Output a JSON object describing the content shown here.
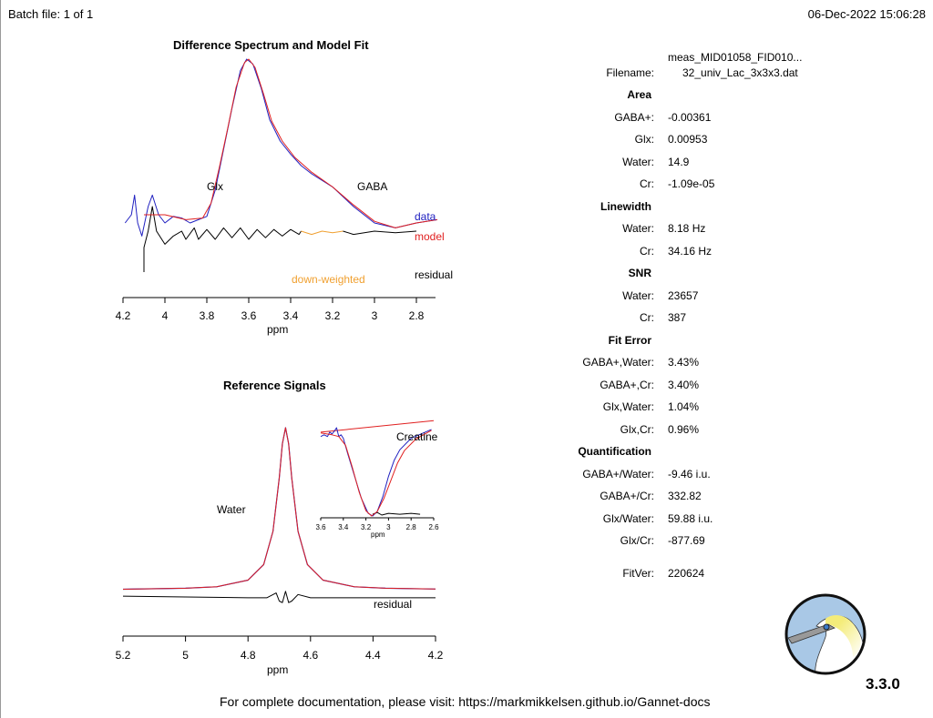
{
  "header": {
    "batch": "Batch file: 1 of 1",
    "datetime": "06-Dec-2022 15:06:28"
  },
  "footer": "For complete documentation, please visit: https://markmikkelsen.github.io/Gannet-docs",
  "version": "3.3.0",
  "results": {
    "filename_label": "Filename:",
    "filename_line1": "meas_MID01058_FID010...",
    "filename_line2": "32_univ_Lac_3x3x3.dat",
    "sections": [
      {
        "title": "Area",
        "rows": [
          [
            "GABA+:",
            "-0.00361"
          ],
          [
            "Glx:",
            "0.00953"
          ],
          [
            "Water:",
            "14.9"
          ],
          [
            "Cr:",
            "-1.09e-05"
          ]
        ]
      },
      {
        "title": "Linewidth",
        "rows": [
          [
            "Water:",
            "8.18 Hz"
          ],
          [
            "Cr:",
            "34.16 Hz"
          ]
        ]
      },
      {
        "title": "SNR",
        "rows": [
          [
            "Water:",
            "23657"
          ],
          [
            "Cr:",
            "387"
          ]
        ]
      },
      {
        "title": "Fit Error",
        "rows": [
          [
            "GABA+,Water:",
            "3.43%"
          ],
          [
            "GABA+,Cr:",
            "3.40%"
          ],
          [
            "Glx,Water:",
            "1.04%"
          ],
          [
            "Glx,Cr:",
            "0.96%"
          ]
        ]
      },
      {
        "title": "Quantification",
        "rows": [
          [
            "GABA+/Water:",
            "-9.46 i.u."
          ],
          [
            "GABA+/Cr:",
            "332.82"
          ],
          [
            "Glx/Water:",
            "59.88 i.u."
          ],
          [
            "Glx/Cr:",
            "-877.69"
          ]
        ]
      }
    ],
    "fitver_label": "FitVer:",
    "fitver": "220624"
  },
  "colors": {
    "data": "#2020c0",
    "model": "#e02020",
    "residual": "#000000",
    "downweighted": "#f0a030"
  },
  "chart_data": [
    {
      "type": "line",
      "title": "Difference Spectrum and Model Fit",
      "xlabel": "ppm",
      "xlim": [
        4.2,
        2.7
      ],
      "reversed_x": true,
      "xticks": [
        "4.2",
        "4",
        "3.8",
        "3.6",
        "3.4",
        "3.2",
        "3",
        "2.8"
      ],
      "annotations": {
        "glx": "Glx",
        "gaba": "GABA",
        "data": "data",
        "model": "model",
        "residual": "residual",
        "downweighted": "down-weighted"
      },
      "series": {
        "data": [
          [
            4.19,
            0.0
          ],
          [
            4.16,
            0.05
          ],
          [
            4.145,
            0.17
          ],
          [
            4.13,
            0.0
          ],
          [
            4.11,
            -0.08
          ],
          [
            4.08,
            0.1
          ],
          [
            4.06,
            0.17
          ],
          [
            4.03,
            0.05
          ],
          [
            4.0,
            0.0
          ],
          [
            3.96,
            0.04
          ],
          [
            3.92,
            0.03
          ],
          [
            3.88,
            0.0
          ],
          [
            3.84,
            0.02
          ],
          [
            3.8,
            0.04
          ],
          [
            3.76,
            0.2
          ],
          [
            3.72,
            0.45
          ],
          [
            3.68,
            0.7
          ],
          [
            3.64,
            0.93
          ],
          [
            3.61,
            1.0
          ],
          [
            3.58,
            0.97
          ],
          [
            3.54,
            0.82
          ],
          [
            3.5,
            0.63
          ],
          [
            3.45,
            0.5
          ],
          [
            3.4,
            0.42
          ],
          [
            3.35,
            0.35
          ],
          [
            3.3,
            0.3
          ],
          [
            3.2,
            0.22
          ],
          [
            3.1,
            0.1
          ],
          [
            3.0,
            0.0
          ],
          [
            2.9,
            -0.03
          ],
          [
            2.8,
            0.0
          ],
          [
            2.7,
            0.02
          ]
        ],
        "model": [
          [
            4.1,
            0.05
          ],
          [
            4.0,
            0.05
          ],
          [
            3.9,
            0.02
          ],
          [
            3.82,
            0.03
          ],
          [
            3.78,
            0.12
          ],
          [
            3.74,
            0.34
          ],
          [
            3.7,
            0.58
          ],
          [
            3.66,
            0.83
          ],
          [
            3.62,
            0.98
          ],
          [
            3.6,
            1.0
          ],
          [
            3.57,
            0.95
          ],
          [
            3.53,
            0.79
          ],
          [
            3.49,
            0.62
          ],
          [
            3.44,
            0.5
          ],
          [
            3.38,
            0.4
          ],
          [
            3.3,
            0.31
          ],
          [
            3.2,
            0.22
          ],
          [
            3.1,
            0.11
          ],
          [
            3.0,
            0.01
          ],
          [
            2.9,
            -0.03
          ],
          [
            2.8,
            0.0
          ],
          [
            2.7,
            0.02
          ]
        ],
        "residual": [
          [
            4.1,
            -0.3
          ],
          [
            4.1,
            -0.15
          ],
          [
            4.08,
            -0.05
          ],
          [
            4.06,
            0.1
          ],
          [
            4.04,
            -0.05
          ],
          [
            4.0,
            -0.13
          ],
          [
            3.96,
            -0.08
          ],
          [
            3.92,
            -0.05
          ],
          [
            3.9,
            -0.1
          ],
          [
            3.86,
            -0.03
          ],
          [
            3.84,
            -0.1
          ],
          [
            3.8,
            -0.04
          ],
          [
            3.76,
            -0.1
          ],
          [
            3.72,
            -0.03
          ],
          [
            3.68,
            -0.09
          ],
          [
            3.64,
            -0.03
          ],
          [
            3.6,
            -0.1
          ],
          [
            3.56,
            -0.04
          ],
          [
            3.52,
            -0.09
          ],
          [
            3.48,
            -0.04
          ],
          [
            3.44,
            -0.08
          ],
          [
            3.4,
            -0.04
          ],
          [
            3.36,
            -0.07
          ],
          [
            3.35,
            -0.05
          ]
        ],
        "residual_downweighted": [
          [
            3.35,
            -0.05
          ],
          [
            3.3,
            -0.07
          ],
          [
            3.25,
            -0.05
          ],
          [
            3.2,
            -0.06
          ],
          [
            3.15,
            -0.05
          ]
        ],
        "residual_tail": [
          [
            3.15,
            -0.05
          ],
          [
            3.1,
            -0.07
          ],
          [
            3.0,
            -0.05
          ],
          [
            2.9,
            -0.06
          ],
          [
            2.8,
            -0.05
          ]
        ]
      }
    },
    {
      "type": "line",
      "title": "Reference Signals",
      "xlabel": "ppm",
      "xlim": [
        5.2,
        4.2
      ],
      "reversed_x": true,
      "xticks": [
        "5.2",
        "5",
        "4.8",
        "4.6",
        "4.4",
        "4.2"
      ],
      "annotations": {
        "water": "Water",
        "residual": "residual"
      },
      "series": {
        "data": [
          [
            5.2,
            0.003
          ],
          [
            5.0,
            0.009
          ],
          [
            4.9,
            0.018
          ],
          [
            4.8,
            0.059
          ],
          [
            4.75,
            0.155
          ],
          [
            4.72,
            0.36
          ],
          [
            4.7,
            0.69
          ],
          [
            4.69,
            0.9
          ],
          [
            4.68,
            1.0
          ],
          [
            4.67,
            0.9
          ],
          [
            4.66,
            0.69
          ],
          [
            4.64,
            0.36
          ],
          [
            4.61,
            0.155
          ],
          [
            4.56,
            0.059
          ],
          [
            4.46,
            0.018
          ],
          [
            4.36,
            0.009
          ],
          [
            4.2,
            0.004
          ]
        ],
        "residual": [
          [
            5.2,
            -0.04
          ],
          [
            5.0,
            -0.045
          ],
          [
            4.8,
            -0.05
          ],
          [
            4.74,
            -0.05
          ],
          [
            4.71,
            -0.02
          ],
          [
            4.7,
            -0.07
          ],
          [
            4.69,
            -0.08
          ],
          [
            4.68,
            -0.01
          ],
          [
            4.67,
            -0.08
          ],
          [
            4.66,
            -0.07
          ],
          [
            4.64,
            -0.03
          ],
          [
            4.6,
            -0.05
          ],
          [
            4.4,
            -0.05
          ],
          [
            4.2,
            -0.05
          ]
        ]
      }
    },
    {
      "type": "line",
      "title": "",
      "xlabel": "ppm",
      "xlim": [
        3.6,
        2.6
      ],
      "reversed_x": true,
      "xticks": [
        "3.6",
        "3.4",
        "3.2",
        "3",
        "2.8",
        "2.6"
      ],
      "annotations": {
        "creatine": "Creatine"
      },
      "series": {
        "data": [
          [
            3.6,
            0.9
          ],
          [
            3.57,
            0.92
          ],
          [
            3.54,
            0.9
          ],
          [
            3.52,
            0.95
          ],
          [
            3.5,
            0.93
          ],
          [
            3.48,
            0.96
          ],
          [
            3.46,
            1.0
          ],
          [
            3.44,
            0.9
          ],
          [
            3.42,
            0.92
          ],
          [
            3.4,
            0.88
          ],
          [
            3.36,
            0.7
          ],
          [
            3.3,
            0.45
          ],
          [
            3.24,
            0.2
          ],
          [
            3.18,
            0.03
          ],
          [
            3.14,
            0.0
          ],
          [
            3.1,
            0.05
          ],
          [
            3.05,
            0.22
          ],
          [
            3.0,
            0.45
          ],
          [
            2.95,
            0.63
          ],
          [
            2.9,
            0.75
          ],
          [
            2.8,
            0.88
          ],
          [
            2.62,
            0.98
          ]
        ],
        "model": [
          [
            3.6,
            0.94
          ],
          [
            3.5,
            0.92
          ],
          [
            3.44,
            0.9
          ],
          [
            3.38,
            0.8
          ],
          [
            3.32,
            0.55
          ],
          [
            3.26,
            0.27
          ],
          [
            3.2,
            0.06
          ],
          [
            3.15,
            0.0
          ],
          [
            3.1,
            0.05
          ],
          [
            3.04,
            0.2
          ],
          [
            2.98,
            0.4
          ],
          [
            2.92,
            0.6
          ],
          [
            2.86,
            0.74
          ],
          [
            2.76,
            0.87
          ],
          [
            2.62,
            0.97
          ]
        ],
        "baseline": [
          [
            3.6,
            0.95
          ],
          [
            2.6,
            1.08
          ]
        ],
        "residual": [
          [
            3.14,
            0.02
          ],
          [
            3.1,
            0.04
          ],
          [
            3.06,
            0.01
          ],
          [
            3.0,
            0.03
          ],
          [
            2.9,
            0.02
          ],
          [
            2.8,
            0.03
          ],
          [
            2.72,
            0.02
          ]
        ]
      }
    }
  ]
}
